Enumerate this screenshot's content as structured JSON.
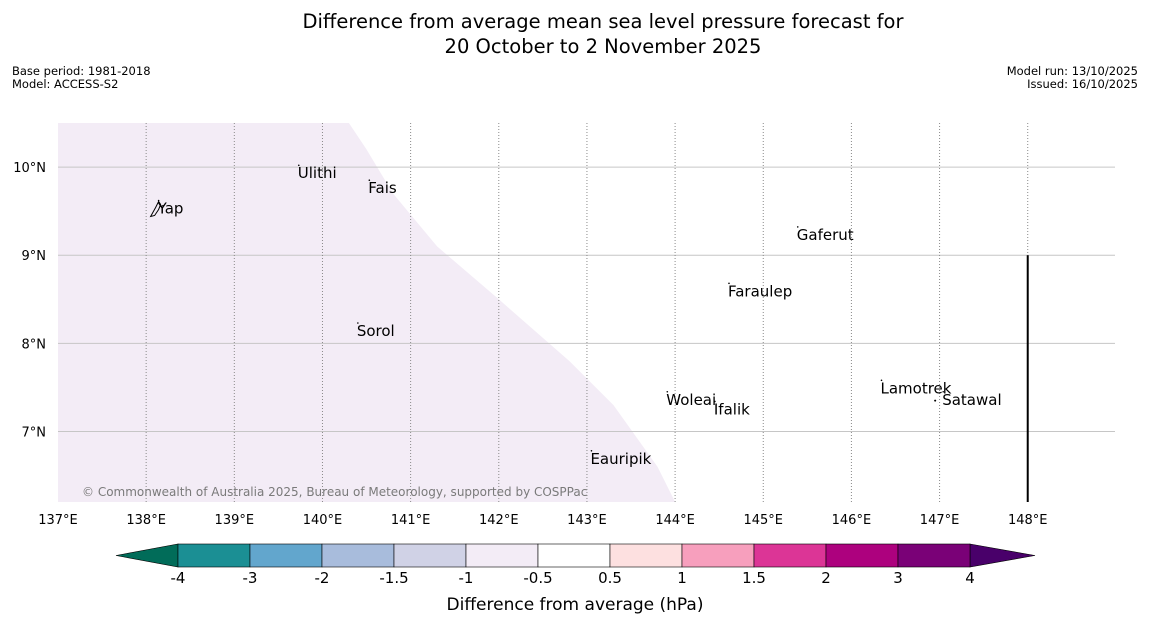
{
  "title": {
    "line1": "Difference from average mean sea level pressure forecast for",
    "line2": "20 October to 2 November 2025"
  },
  "meta": {
    "base_period": "Base period: 1981-2018",
    "model": "Model: ACCESS-S2",
    "model_run": "Model run: 13/10/2025",
    "issued": "Issued: 16/10/2025"
  },
  "map": {
    "lon_range": [
      137,
      148.99
    ],
    "lat_range": [
      6.2,
      10.5
    ],
    "lat_ticks": [
      {
        "value": 10,
        "label": "10°N"
      },
      {
        "value": 9,
        "label": "9°N"
      },
      {
        "value": 8,
        "label": "8°N"
      },
      {
        "value": 7,
        "label": "7°N"
      }
    ],
    "lon_ticks": [
      {
        "value": 137,
        "label": "137°E"
      },
      {
        "value": 138,
        "label": "138°E"
      },
      {
        "value": 139,
        "label": "139°E"
      },
      {
        "value": 140,
        "label": "140°E"
      },
      {
        "value": 141,
        "label": "141°E"
      },
      {
        "value": 142,
        "label": "142°E"
      },
      {
        "value": 143,
        "label": "143°E"
      },
      {
        "value": 144,
        "label": "144°E"
      },
      {
        "value": 145,
        "label": "145°E"
      },
      {
        "value": 146,
        "label": "146°E"
      },
      {
        "value": 147,
        "label": "147°E"
      },
      {
        "value": 148,
        "label": "148°E"
      }
    ],
    "shaded_region": {
      "category": "-1 to -0.5",
      "color": "#f3ecf6",
      "boundary": [
        [
          137,
          10.5
        ],
        [
          140.3,
          10.5
        ],
        [
          140.5,
          10.2
        ],
        [
          140.8,
          9.7
        ],
        [
          141.3,
          9.1
        ],
        [
          142.0,
          8.5
        ],
        [
          142.8,
          7.8
        ],
        [
          143.3,
          7.3
        ],
        [
          143.8,
          6.6
        ],
        [
          144.0,
          6.2
        ],
        [
          137,
          6.2
        ]
      ]
    },
    "places": [
      {
        "name": "Yap",
        "lon": 138.13,
        "lat": 9.53
      },
      {
        "name": "Ulithi",
        "lon": 139.72,
        "lat": 9.93
      },
      {
        "name": "Fais",
        "lon": 140.52,
        "lat": 9.76
      },
      {
        "name": "Sorol",
        "lon": 140.39,
        "lat": 8.14
      },
      {
        "name": "Gaferut",
        "lon": 145.38,
        "lat": 9.23
      },
      {
        "name": "Faraulep",
        "lon": 144.6,
        "lat": 8.59
      },
      {
        "name": "Woleai",
        "lon": 143.9,
        "lat": 7.36
      },
      {
        "name": "Ifalik",
        "lon": 144.44,
        "lat": 7.25
      },
      {
        "name": "Lamotrek",
        "lon": 146.33,
        "lat": 7.49
      },
      {
        "name": "Satawal",
        "lon": 147.03,
        "lat": 7.36
      },
      {
        "name": "Eauripik",
        "lon": 143.04,
        "lat": 6.69
      }
    ],
    "boundary_line": {
      "lon": 148.0,
      "lat_from": 6.2,
      "lat_to": 9.0
    },
    "copyright": "© Commonwealth of Australia 2025, Bureau of Meteorology, supported by COSPPac"
  },
  "colorbar": {
    "title": "Difference from average (hPa)",
    "labels": [
      "-4",
      "-3",
      "-2",
      "-1.5",
      "-1",
      "-0.5",
      "0.5",
      "1",
      "1.5",
      "2",
      "3",
      "4"
    ],
    "colors": [
      "#1b8f94",
      "#62a6cd",
      "#a8bcdc",
      "#d0d2e6",
      "#f3ecf6",
      "#ffffff",
      "#fde0e0",
      "#f79fbd",
      "#dc3596",
      "#ad017e",
      "#7a0177"
    ],
    "under_color": "#016c59",
    "over_color": "#49006a"
  }
}
